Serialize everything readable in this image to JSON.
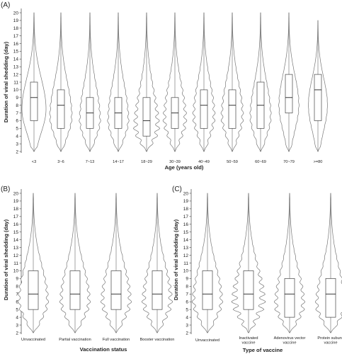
{
  "chart_data": [
    {
      "type": "violin",
      "panel_label": "(A)",
      "xlabel": "Age (years old)",
      "ylabel": "Duration of viral shedding (day)",
      "ylim": [
        2,
        20
      ],
      "yticks": [
        2,
        3,
        4,
        5,
        6,
        7,
        8,
        9,
        10,
        11,
        12,
        13,
        14,
        15,
        16,
        17,
        18,
        19,
        20
      ],
      "categories": [
        "<3",
        "3~6",
        "7~13",
        "14~17",
        "18~29",
        "30~39",
        "40~49",
        "50~59",
        "60~69",
        "70~79",
        ">=80"
      ],
      "boxes": [
        {
          "whisker_low": 2,
          "q1": 6,
          "median": 9,
          "q3": 11,
          "whisker_high": 20
        },
        {
          "whisker_low": 2,
          "q1": 5,
          "median": 8,
          "q3": 10,
          "whisker_high": 20
        },
        {
          "whisker_low": 2,
          "q1": 5,
          "median": 7,
          "q3": 9,
          "whisker_high": 20
        },
        {
          "whisker_low": 2,
          "q1": 5,
          "median": 7,
          "q3": 9,
          "whisker_high": 20
        },
        {
          "whisker_low": 2,
          "q1": 4,
          "median": 6,
          "q3": 9,
          "whisker_high": 20
        },
        {
          "whisker_low": 2,
          "q1": 5,
          "median": 7,
          "q3": 9,
          "whisker_high": 20
        },
        {
          "whisker_low": 2,
          "q1": 5,
          "median": 8,
          "q3": 10,
          "whisker_high": 20
        },
        {
          "whisker_low": 2,
          "q1": 5,
          "median": 8,
          "q3": 10,
          "whisker_high": 20
        },
        {
          "whisker_low": 2,
          "q1": 5,
          "median": 8,
          "q3": 11,
          "whisker_high": 20
        },
        {
          "whisker_low": 2,
          "q1": 7,
          "median": 9,
          "q3": 12,
          "whisker_high": 20
        },
        {
          "whisker_low": 2,
          "q1": 6,
          "median": 10,
          "q3": 12,
          "whisker_high": 19
        }
      ]
    },
    {
      "type": "violin",
      "panel_label": "(B)",
      "xlabel": "Vaccination status",
      "ylabel": "Duration of viral shedding (day)",
      "ylim": [
        2,
        20
      ],
      "yticks": [
        2,
        3,
        4,
        5,
        6,
        7,
        8,
        9,
        10,
        11,
        12,
        13,
        14,
        15,
        16,
        17,
        18,
        19,
        20
      ],
      "categories": [
        "Unvaccinated",
        "Partial vaccination",
        "Full vaccination",
        "Booster vaccination"
      ],
      "boxes": [
        {
          "whisker_low": 2,
          "q1": 5,
          "median": 7,
          "q3": 10,
          "whisker_high": 20
        },
        {
          "whisker_low": 2,
          "q1": 5,
          "median": 7,
          "q3": 10,
          "whisker_high": 20
        },
        {
          "whisker_low": 2,
          "q1": 5,
          "median": 7,
          "q3": 10,
          "whisker_high": 20
        },
        {
          "whisker_low": 2,
          "q1": 5,
          "median": 7,
          "q3": 10,
          "whisker_high": 20
        }
      ]
    },
    {
      "type": "violin",
      "panel_label": "(C)",
      "xlabel": "Type of vaccine",
      "ylabel": "Duration of viral shedding (day)",
      "ylim": [
        2,
        20
      ],
      "yticks": [
        2,
        3,
        4,
        5,
        6,
        7,
        8,
        9,
        10,
        11,
        12,
        13,
        14,
        15,
        16,
        17,
        18,
        19,
        20
      ],
      "categories": [
        "Unvaccinated",
        "Inactivated vaccine",
        "Adenovirus vector vaccine",
        "Protein subunit vaccine"
      ],
      "boxes": [
        {
          "whisker_low": 2,
          "q1": 5,
          "median": 7,
          "q3": 10,
          "whisker_high": 20
        },
        {
          "whisker_low": 2,
          "q1": 5,
          "median": 7,
          "q3": 10,
          "whisker_high": 20
        },
        {
          "whisker_low": 2,
          "q1": 4,
          "median": 7,
          "q3": 9,
          "whisker_high": 20
        },
        {
          "whisker_low": 2,
          "q1": 4,
          "median": 7,
          "q3": 9,
          "whisker_high": 20
        }
      ]
    }
  ]
}
